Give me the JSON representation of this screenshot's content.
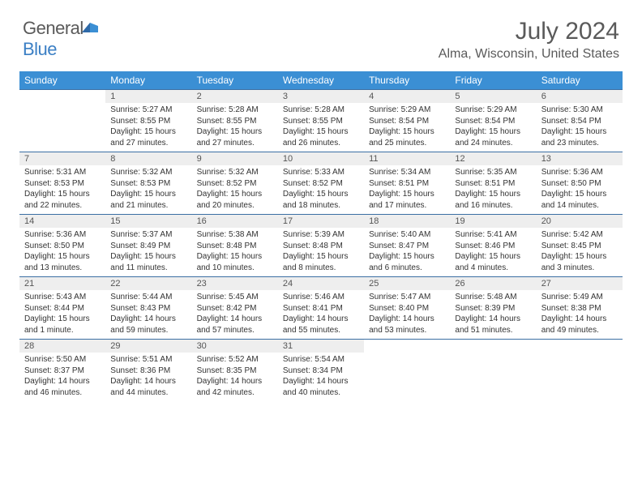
{
  "logo": {
    "word1": "General",
    "word2": "Blue"
  },
  "title": "July 2024",
  "location": "Alma, Wisconsin, United States",
  "colors": {
    "header_bg": "#3b8fd4",
    "header_text": "#ffffff",
    "daynum_bg": "#eeeeee",
    "rule": "#3b6fa4",
    "body_text": "#333333",
    "logo_gray": "#5a5a5a",
    "logo_blue": "#3b7fc4"
  },
  "weekdays": [
    "Sunday",
    "Monday",
    "Tuesday",
    "Wednesday",
    "Thursday",
    "Friday",
    "Saturday"
  ],
  "weeks": [
    [
      {
        "n": "",
        "sr": "",
        "ss": "",
        "dl": ""
      },
      {
        "n": "1",
        "sr": "Sunrise: 5:27 AM",
        "ss": "Sunset: 8:55 PM",
        "dl": "Daylight: 15 hours and 27 minutes."
      },
      {
        "n": "2",
        "sr": "Sunrise: 5:28 AM",
        "ss": "Sunset: 8:55 PM",
        "dl": "Daylight: 15 hours and 27 minutes."
      },
      {
        "n": "3",
        "sr": "Sunrise: 5:28 AM",
        "ss": "Sunset: 8:55 PM",
        "dl": "Daylight: 15 hours and 26 minutes."
      },
      {
        "n": "4",
        "sr": "Sunrise: 5:29 AM",
        "ss": "Sunset: 8:54 PM",
        "dl": "Daylight: 15 hours and 25 minutes."
      },
      {
        "n": "5",
        "sr": "Sunrise: 5:29 AM",
        "ss": "Sunset: 8:54 PM",
        "dl": "Daylight: 15 hours and 24 minutes."
      },
      {
        "n": "6",
        "sr": "Sunrise: 5:30 AM",
        "ss": "Sunset: 8:54 PM",
        "dl": "Daylight: 15 hours and 23 minutes."
      }
    ],
    [
      {
        "n": "7",
        "sr": "Sunrise: 5:31 AM",
        "ss": "Sunset: 8:53 PM",
        "dl": "Daylight: 15 hours and 22 minutes."
      },
      {
        "n": "8",
        "sr": "Sunrise: 5:32 AM",
        "ss": "Sunset: 8:53 PM",
        "dl": "Daylight: 15 hours and 21 minutes."
      },
      {
        "n": "9",
        "sr": "Sunrise: 5:32 AM",
        "ss": "Sunset: 8:52 PM",
        "dl": "Daylight: 15 hours and 20 minutes."
      },
      {
        "n": "10",
        "sr": "Sunrise: 5:33 AM",
        "ss": "Sunset: 8:52 PM",
        "dl": "Daylight: 15 hours and 18 minutes."
      },
      {
        "n": "11",
        "sr": "Sunrise: 5:34 AM",
        "ss": "Sunset: 8:51 PM",
        "dl": "Daylight: 15 hours and 17 minutes."
      },
      {
        "n": "12",
        "sr": "Sunrise: 5:35 AM",
        "ss": "Sunset: 8:51 PM",
        "dl": "Daylight: 15 hours and 16 minutes."
      },
      {
        "n": "13",
        "sr": "Sunrise: 5:36 AM",
        "ss": "Sunset: 8:50 PM",
        "dl": "Daylight: 15 hours and 14 minutes."
      }
    ],
    [
      {
        "n": "14",
        "sr": "Sunrise: 5:36 AM",
        "ss": "Sunset: 8:50 PM",
        "dl": "Daylight: 15 hours and 13 minutes."
      },
      {
        "n": "15",
        "sr": "Sunrise: 5:37 AM",
        "ss": "Sunset: 8:49 PM",
        "dl": "Daylight: 15 hours and 11 minutes."
      },
      {
        "n": "16",
        "sr": "Sunrise: 5:38 AM",
        "ss": "Sunset: 8:48 PM",
        "dl": "Daylight: 15 hours and 10 minutes."
      },
      {
        "n": "17",
        "sr": "Sunrise: 5:39 AM",
        "ss": "Sunset: 8:48 PM",
        "dl": "Daylight: 15 hours and 8 minutes."
      },
      {
        "n": "18",
        "sr": "Sunrise: 5:40 AM",
        "ss": "Sunset: 8:47 PM",
        "dl": "Daylight: 15 hours and 6 minutes."
      },
      {
        "n": "19",
        "sr": "Sunrise: 5:41 AM",
        "ss": "Sunset: 8:46 PM",
        "dl": "Daylight: 15 hours and 4 minutes."
      },
      {
        "n": "20",
        "sr": "Sunrise: 5:42 AM",
        "ss": "Sunset: 8:45 PM",
        "dl": "Daylight: 15 hours and 3 minutes."
      }
    ],
    [
      {
        "n": "21",
        "sr": "Sunrise: 5:43 AM",
        "ss": "Sunset: 8:44 PM",
        "dl": "Daylight: 15 hours and 1 minute."
      },
      {
        "n": "22",
        "sr": "Sunrise: 5:44 AM",
        "ss": "Sunset: 8:43 PM",
        "dl": "Daylight: 14 hours and 59 minutes."
      },
      {
        "n": "23",
        "sr": "Sunrise: 5:45 AM",
        "ss": "Sunset: 8:42 PM",
        "dl": "Daylight: 14 hours and 57 minutes."
      },
      {
        "n": "24",
        "sr": "Sunrise: 5:46 AM",
        "ss": "Sunset: 8:41 PM",
        "dl": "Daylight: 14 hours and 55 minutes."
      },
      {
        "n": "25",
        "sr": "Sunrise: 5:47 AM",
        "ss": "Sunset: 8:40 PM",
        "dl": "Daylight: 14 hours and 53 minutes."
      },
      {
        "n": "26",
        "sr": "Sunrise: 5:48 AM",
        "ss": "Sunset: 8:39 PM",
        "dl": "Daylight: 14 hours and 51 minutes."
      },
      {
        "n": "27",
        "sr": "Sunrise: 5:49 AM",
        "ss": "Sunset: 8:38 PM",
        "dl": "Daylight: 14 hours and 49 minutes."
      }
    ],
    [
      {
        "n": "28",
        "sr": "Sunrise: 5:50 AM",
        "ss": "Sunset: 8:37 PM",
        "dl": "Daylight: 14 hours and 46 minutes."
      },
      {
        "n": "29",
        "sr": "Sunrise: 5:51 AM",
        "ss": "Sunset: 8:36 PM",
        "dl": "Daylight: 14 hours and 44 minutes."
      },
      {
        "n": "30",
        "sr": "Sunrise: 5:52 AM",
        "ss": "Sunset: 8:35 PM",
        "dl": "Daylight: 14 hours and 42 minutes."
      },
      {
        "n": "31",
        "sr": "Sunrise: 5:54 AM",
        "ss": "Sunset: 8:34 PM",
        "dl": "Daylight: 14 hours and 40 minutes."
      },
      {
        "n": "",
        "sr": "",
        "ss": "",
        "dl": ""
      },
      {
        "n": "",
        "sr": "",
        "ss": "",
        "dl": ""
      },
      {
        "n": "",
        "sr": "",
        "ss": "",
        "dl": ""
      }
    ]
  ]
}
